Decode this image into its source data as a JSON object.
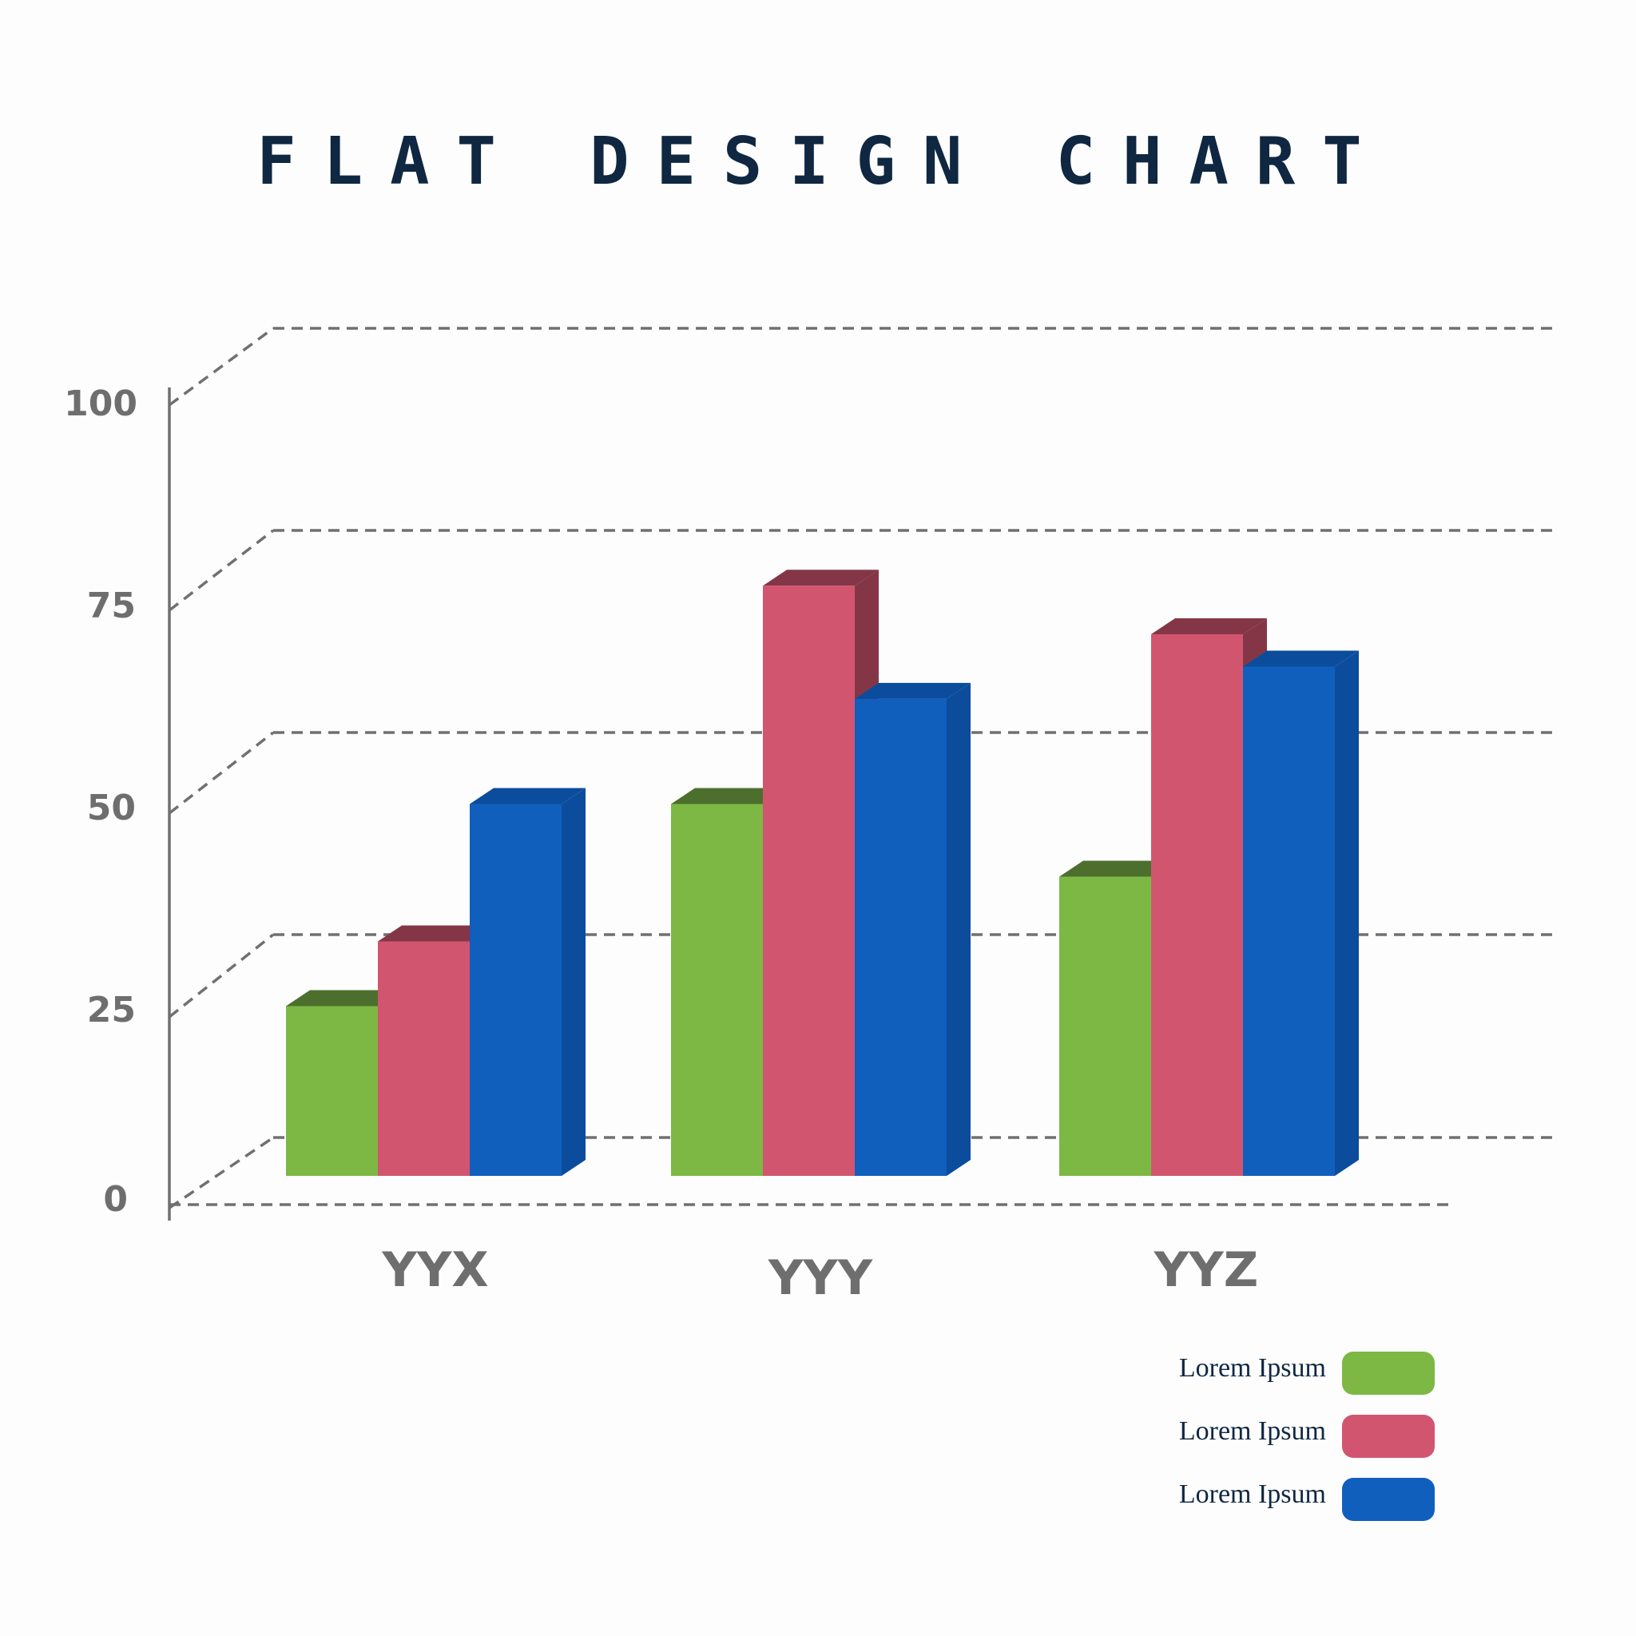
{
  "chart_data": {
    "type": "bar",
    "title": "FLAT DESIGN CHART",
    "categories": [
      "YYX",
      "YYY",
      "YYZ"
    ],
    "series": [
      {
        "name": "Lorem Ipsum",
        "color": "#7db844",
        "top_color": "#4c6f2d",
        "values": [
          21,
          46,
          37
        ]
      },
      {
        "name": "Lorem Ipsum",
        "color": "#d25570",
        "top_color": "#843647",
        "values": [
          29,
          73,
          67
        ]
      },
      {
        "name": "Lorem Ipsum",
        "color": "#115fbd",
        "top_color": "#0b4d9c",
        "values": [
          46,
          59,
          63
        ]
      }
    ],
    "y_ticks": [
      "0",
      "25",
      "50",
      "75",
      "100"
    ],
    "ylim": [
      0,
      100
    ],
    "grid": true,
    "legend_position": "bottom-right"
  }
}
